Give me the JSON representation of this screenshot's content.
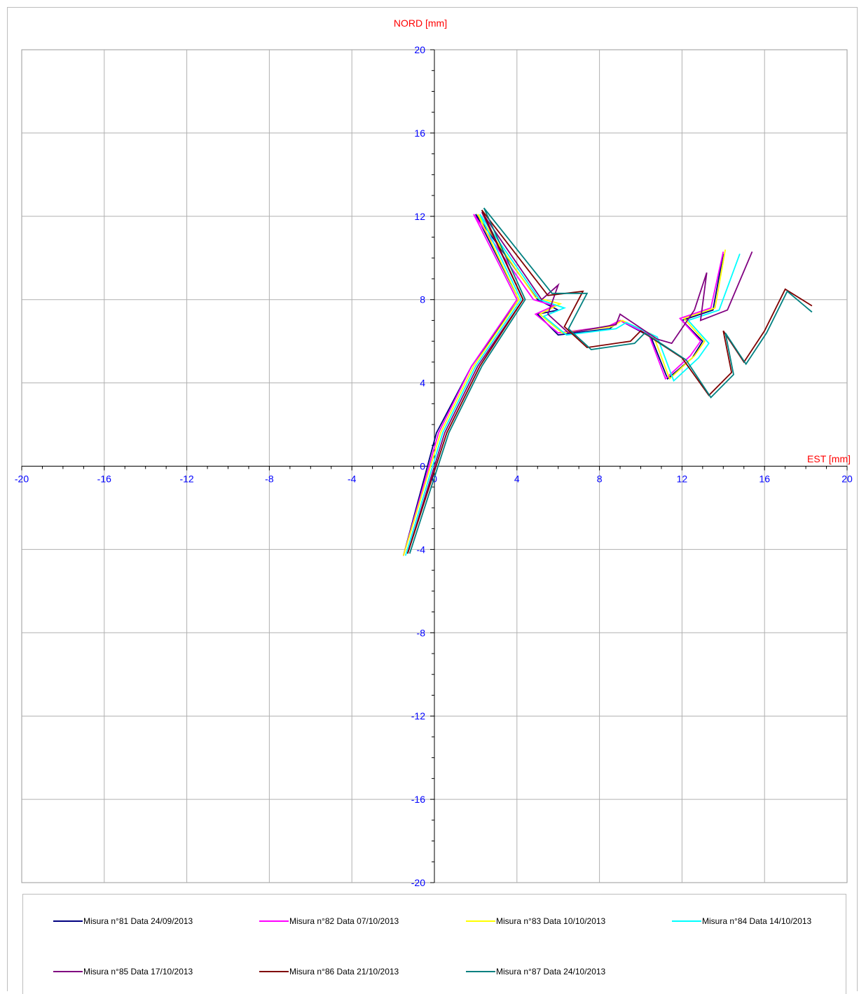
{
  "chart_data": {
    "type": "line",
    "title": "",
    "xlabel": "EST [mm]",
    "ylabel": "NORD  [mm]",
    "xlim": [
      -20,
      20
    ],
    "ylim": [
      -20,
      20
    ],
    "x_ticks": [
      "-20",
      "-16",
      "-12",
      "-8",
      "-4",
      "0",
      "4",
      "8",
      "12",
      "16",
      "20"
    ],
    "y_ticks": [
      "-20",
      "-16",
      "-12",
      "-8",
      "-4",
      "0",
      "4",
      "8",
      "12",
      "16",
      "20"
    ],
    "grid": true,
    "legend_position": "bottom",
    "series": [
      {
        "name": "Misura n°81 Data 24/09/2013",
        "color": "#000080",
        "points": [
          [
            -1.5,
            -4.3
          ],
          [
            0.1,
            1.6
          ],
          [
            1.8,
            4.8
          ],
          [
            4.1,
            8.0
          ],
          [
            2.0,
            12.1
          ],
          [
            5.0,
            8.0
          ],
          [
            6.0,
            7.5
          ],
          [
            5.0,
            7.3
          ],
          [
            6.0,
            6.3
          ],
          [
            8.5,
            6.6
          ],
          [
            9.0,
            7.0
          ],
          [
            10.5,
            6.2
          ],
          [
            11.3,
            4.2
          ],
          [
            12.5,
            5.2
          ],
          [
            13.0,
            6.0
          ],
          [
            12.0,
            7.0
          ],
          [
            13.5,
            7.5
          ],
          [
            14.0,
            10.2
          ]
        ]
      },
      {
        "name": "Misura n°82 Data 07/10/2013",
        "color": "#ff00ff",
        "points": [
          [
            -1.5,
            -4.3
          ],
          [
            0.2,
            1.6
          ],
          [
            1.8,
            4.8
          ],
          [
            4.0,
            8.0
          ],
          [
            1.9,
            12.1
          ],
          [
            4.8,
            8.0
          ],
          [
            5.8,
            7.7
          ],
          [
            4.9,
            7.3
          ],
          [
            6.0,
            6.4
          ],
          [
            8.4,
            6.7
          ],
          [
            9.0,
            7.0
          ],
          [
            10.4,
            6.3
          ],
          [
            11.2,
            4.2
          ],
          [
            12.4,
            5.3
          ],
          [
            12.9,
            6.0
          ],
          [
            11.9,
            7.1
          ],
          [
            13.4,
            7.6
          ],
          [
            14.0,
            10.3
          ]
        ]
      },
      {
        "name": "Misura n°83 Data 10/10/2013",
        "color": "#ffff00",
        "points": [
          [
            -1.5,
            -4.3
          ],
          [
            0.3,
            1.6
          ],
          [
            1.9,
            4.8
          ],
          [
            4.1,
            8.0
          ],
          [
            2.1,
            12.1
          ],
          [
            4.9,
            8.1
          ],
          [
            6.1,
            7.8
          ],
          [
            5.1,
            7.3
          ],
          [
            6.2,
            6.4
          ],
          [
            8.6,
            6.7
          ],
          [
            9.1,
            7.0
          ],
          [
            10.6,
            6.3
          ],
          [
            11.4,
            4.2
          ],
          [
            12.6,
            5.3
          ],
          [
            13.1,
            6.0
          ],
          [
            12.1,
            7.1
          ],
          [
            13.6,
            7.6
          ],
          [
            14.1,
            10.4
          ]
        ]
      },
      {
        "name": "Misura n°84 Data 14/10/2013",
        "color": "#00ffff",
        "points": [
          [
            -1.4,
            -4.3
          ],
          [
            0.4,
            1.6
          ],
          [
            2.0,
            4.8
          ],
          [
            4.2,
            8.0
          ],
          [
            2.2,
            12.1
          ],
          [
            5.1,
            8.0
          ],
          [
            6.3,
            7.6
          ],
          [
            5.3,
            7.2
          ],
          [
            6.4,
            6.3
          ],
          [
            8.8,
            6.6
          ],
          [
            9.3,
            6.9
          ],
          [
            10.8,
            6.2
          ],
          [
            11.6,
            4.1
          ],
          [
            12.8,
            5.2
          ],
          [
            13.3,
            5.9
          ],
          [
            12.3,
            7.0
          ],
          [
            13.8,
            7.5
          ],
          [
            14.8,
            10.2
          ]
        ]
      },
      {
        "name": "Misura n°85 Data 17/10/2013",
        "color": "#800080",
        "points": [
          [
            -1.3,
            -4.2
          ],
          [
            0.5,
            1.6
          ],
          [
            2.1,
            4.8
          ],
          [
            4.3,
            8.0
          ],
          [
            2.3,
            12.2
          ],
          [
            5.2,
            8.0
          ],
          [
            6.0,
            8.7
          ],
          [
            5.5,
            7.3
          ],
          [
            6.5,
            6.4
          ],
          [
            8.8,
            6.8
          ],
          [
            9.0,
            7.3
          ],
          [
            10.8,
            6.1
          ],
          [
            11.5,
            5.9
          ],
          [
            12.6,
            7.5
          ],
          [
            13.2,
            9.3
          ],
          [
            12.9,
            7.0
          ],
          [
            14.2,
            7.5
          ],
          [
            15.4,
            10.3
          ]
        ]
      },
      {
        "name": "Misura n°86 Data 21/10/2013",
        "color": "#800000",
        "points": [
          [
            -1.3,
            -4.2
          ],
          [
            0.6,
            1.6
          ],
          [
            2.2,
            4.8
          ],
          [
            4.3,
            8.0
          ],
          [
            2.3,
            12.3
          ],
          [
            5.5,
            8.2
          ],
          [
            7.2,
            8.4
          ],
          [
            6.3,
            6.7
          ],
          [
            7.4,
            5.7
          ],
          [
            9.5,
            6.0
          ],
          [
            10.0,
            6.5
          ],
          [
            12.0,
            5.2
          ],
          [
            13.3,
            3.4
          ],
          [
            14.4,
            4.5
          ],
          [
            14.0,
            6.5
          ],
          [
            15.0,
            5.0
          ],
          [
            16.0,
            6.5
          ],
          [
            17.0,
            8.5
          ],
          [
            18.3,
            7.7
          ]
        ]
      },
      {
        "name": "Misura n°87 Data 24/10/2013",
        "color": "#008080",
        "points": [
          [
            -1.2,
            -4.2
          ],
          [
            0.7,
            1.6
          ],
          [
            2.3,
            4.8
          ],
          [
            4.4,
            8.0
          ],
          [
            2.4,
            12.4
          ],
          [
            5.7,
            8.3
          ],
          [
            7.4,
            8.3
          ],
          [
            6.5,
            6.6
          ],
          [
            7.6,
            5.6
          ],
          [
            9.7,
            5.9
          ],
          [
            10.2,
            6.4
          ],
          [
            12.2,
            5.1
          ],
          [
            13.4,
            3.3
          ],
          [
            14.5,
            4.4
          ],
          [
            14.1,
            6.4
          ],
          [
            15.1,
            4.9
          ],
          [
            16.1,
            6.4
          ],
          [
            17.1,
            8.4
          ],
          [
            18.3,
            7.4
          ]
        ]
      }
    ]
  },
  "legend": {
    "items": [
      {
        "label": "Misura n°81 Data 24/09/2013",
        "color": "#000080"
      },
      {
        "label": "Misura n°82 Data 07/10/2013",
        "color": "#ff00ff"
      },
      {
        "label": "Misura n°83 Data 10/10/2013",
        "color": "#ffff00"
      },
      {
        "label": "Misura n°84 Data 14/10/2013",
        "color": "#00ffff"
      },
      {
        "label": "Misura n°85 Data 17/10/2013",
        "color": "#800080"
      },
      {
        "label": "Misura n°86 Data 21/10/2013",
        "color": "#800000"
      },
      {
        "label": "Misura n°87 Data 24/10/2013",
        "color": "#008080"
      }
    ]
  }
}
